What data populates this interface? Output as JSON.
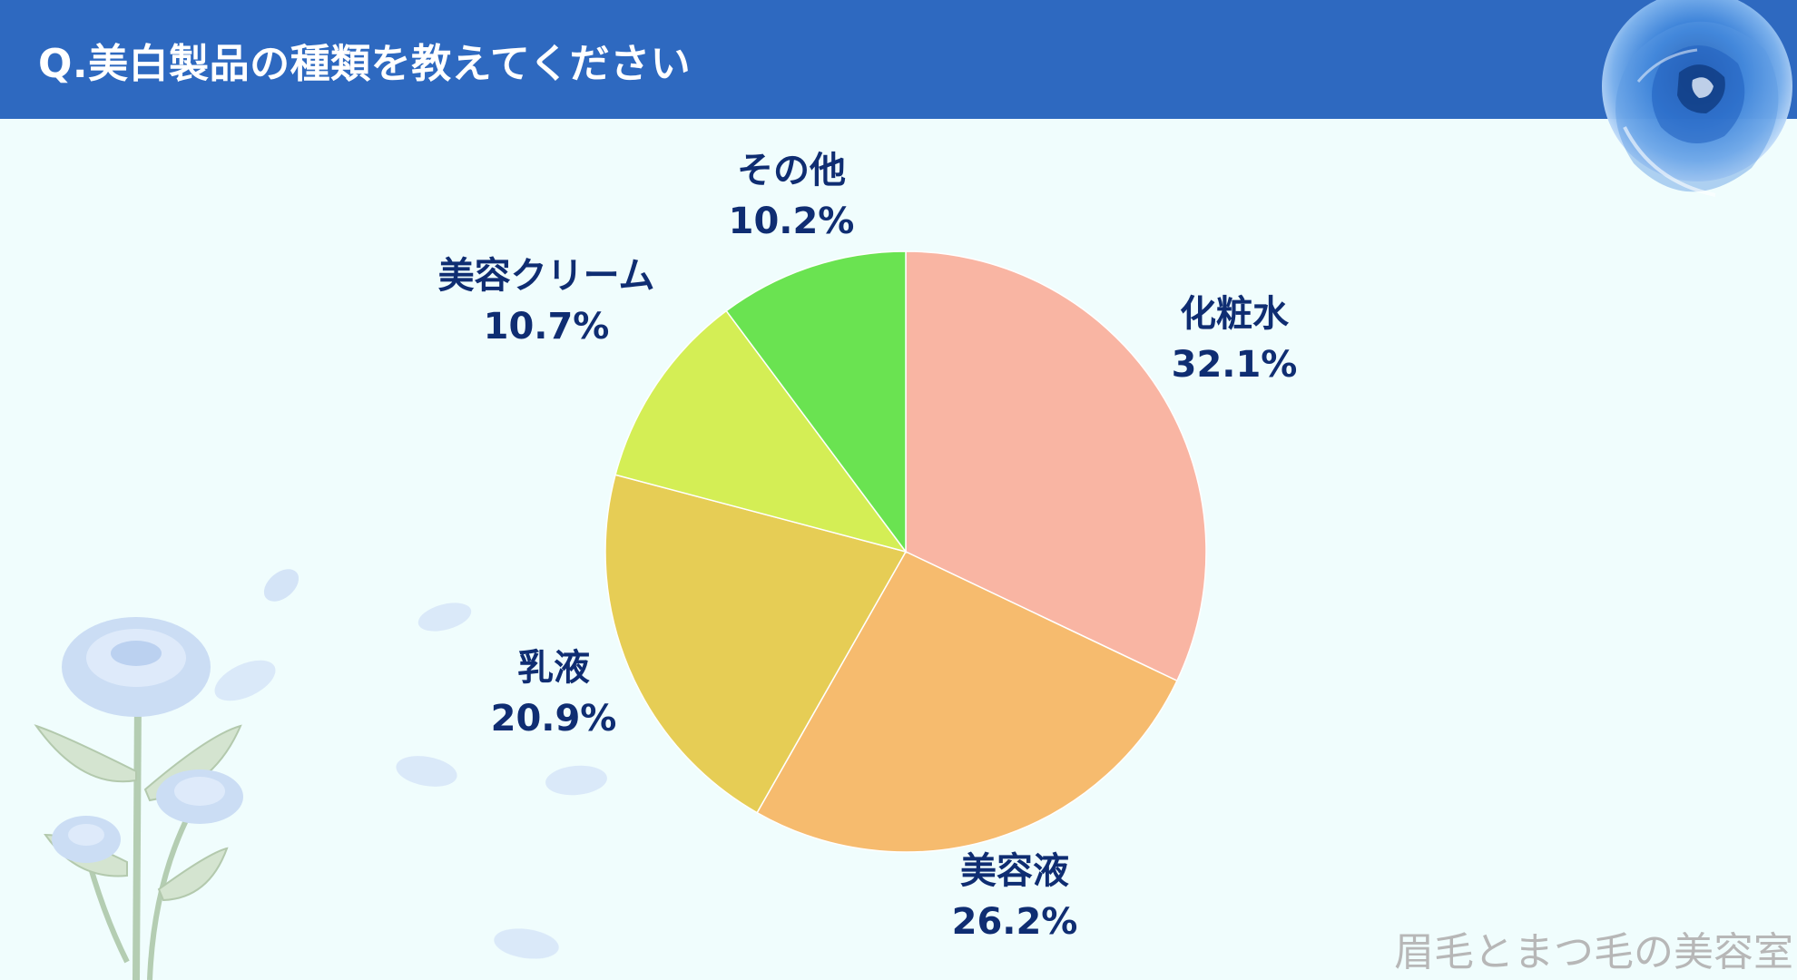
{
  "header": {
    "title": "Q.美白製品の種類を教えてください",
    "background_color": "#2e69c0"
  },
  "chart_data": {
    "type": "pie",
    "title": "Q.美白製品の種類を教えてください",
    "start_angle": "12 o'clock, clockwise",
    "slices": [
      {
        "label": "化粧水",
        "value": 32.1,
        "value_label": "32.1%",
        "color": "#f9b5a3"
      },
      {
        "label": "美容液",
        "value": 26.2,
        "value_label": "26.2%",
        "color": "#f6bb6e"
      },
      {
        "label": "乳液",
        "value": 20.9,
        "value_label": "20.9%",
        "color": "#e6cd55"
      },
      {
        "label": "美容クリーム",
        "value": 10.7,
        "value_label": "10.7%",
        "color": "#d4ee55"
      },
      {
        "label": "その他",
        "value": 10.2,
        "value_label": "10.2%",
        "color": "#6ae351"
      }
    ],
    "legend": "none"
  },
  "watermark": {
    "text": "眉毛とまつ毛の美容室"
  },
  "decorations": {
    "top_right": "blue-rose-icon",
    "bottom_left": "blue-rose-bouquet-icon"
  }
}
